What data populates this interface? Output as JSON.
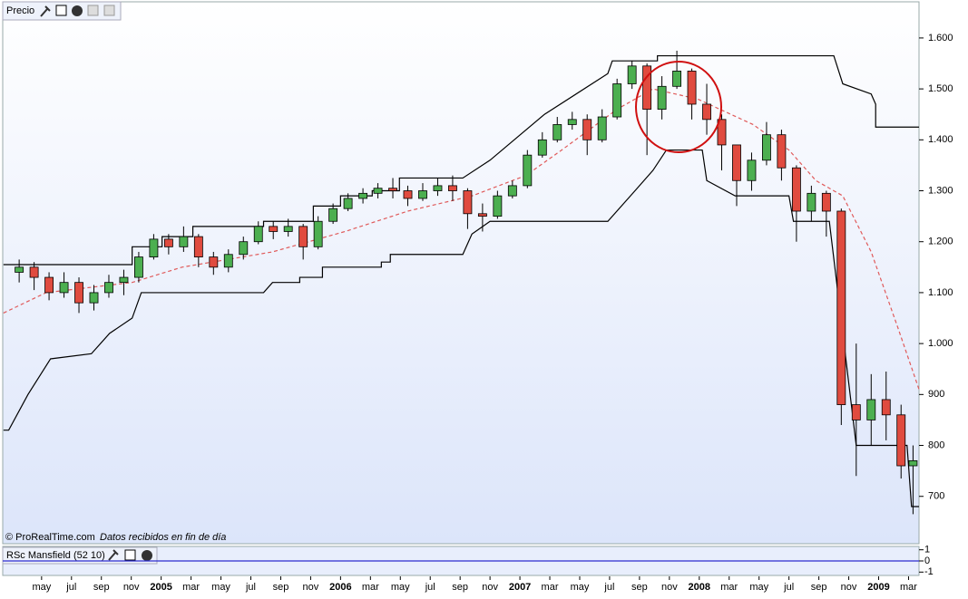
{
  "chart_data": [
    {
      "type": "candlestick",
      "title": "Precio",
      "source": "© ProRealTime.com",
      "note": "Datos recibidos en fin de día",
      "up_color": "#4caf50",
      "down_color": "#e04b3f",
      "x": [
        -0.5,
        0.5,
        1.5,
        2.5,
        3.5,
        4.5,
        5.5,
        6.5,
        7.5,
        8.5,
        9.5,
        10.5,
        11.5,
        12.5,
        13.5,
        14.5,
        15.5,
        16.5,
        17.5,
        18.5,
        19.5,
        20.5,
        21.5,
        22.5,
        23.5,
        24.5,
        25.5,
        26.5,
        27.5,
        28.5,
        29.5,
        30.5,
        31.5,
        32.5,
        33.5,
        34.5,
        35.5,
        36.5,
        37.5,
        38.5,
        39.5,
        40.5,
        41.5,
        42.5,
        43.5,
        44.5,
        45.5,
        46.5,
        47.5,
        48.5,
        49.5,
        50.5,
        51.5,
        52.5,
        53.5,
        54.5,
        55.5,
        56.5,
        57.5,
        58.5,
        59.3
      ],
      "open": [
        1140,
        1150,
        1130,
        1100,
        1120,
        1080,
        1100,
        1120,
        1130,
        1170,
        1205,
        1190,
        1210,
        1170,
        1150,
        1175,
        1200,
        1230,
        1220,
        1230,
        1190,
        1240,
        1265,
        1285,
        1295,
        1305,
        1300,
        1285,
        1300,
        1310,
        1300,
        1255,
        1250,
        1290,
        1310,
        1370,
        1400,
        1430,
        1440,
        1400,
        1445,
        1510,
        1545,
        1460,
        1505,
        1535,
        1470,
        1440,
        1390,
        1320,
        1360,
        1410,
        1345,
        1260,
        1295,
        1260,
        880,
        850,
        890,
        860,
        760
      ],
      "high": [
        1165,
        1160,
        1140,
        1140,
        1130,
        1115,
        1135,
        1145,
        1180,
        1215,
        1215,
        1230,
        1215,
        1180,
        1185,
        1210,
        1240,
        1240,
        1245,
        1235,
        1250,
        1275,
        1295,
        1305,
        1315,
        1325,
        1310,
        1315,
        1325,
        1330,
        1305,
        1275,
        1300,
        1320,
        1380,
        1415,
        1445,
        1455,
        1450,
        1460,
        1520,
        1555,
        1550,
        1525,
        1575,
        1540,
        1510,
        1450,
        1390,
        1375,
        1435,
        1420,
        1350,
        1310,
        1300,
        1265,
        1000,
        940,
        945,
        880,
        800
      ],
      "low": [
        1120,
        1105,
        1085,
        1090,
        1060,
        1065,
        1090,
        1095,
        1120,
        1165,
        1175,
        1180,
        1150,
        1135,
        1140,
        1165,
        1195,
        1205,
        1210,
        1165,
        1185,
        1235,
        1260,
        1275,
        1285,
        1285,
        1270,
        1280,
        1290,
        1280,
        1225,
        1220,
        1245,
        1285,
        1305,
        1365,
        1395,
        1420,
        1370,
        1395,
        1440,
        1500,
        1370,
        1440,
        1500,
        1440,
        1410,
        1340,
        1270,
        1300,
        1350,
        1320,
        1200,
        1240,
        1210,
        840,
        740,
        800,
        810,
        735,
        665
      ],
      "close": [
        1150,
        1130,
        1100,
        1120,
        1080,
        1100,
        1120,
        1130,
        1170,
        1205,
        1190,
        1210,
        1170,
        1150,
        1175,
        1200,
        1230,
        1220,
        1230,
        1190,
        1240,
        1265,
        1285,
        1295,
        1305,
        1300,
        1285,
        1300,
        1310,
        1300,
        1255,
        1250,
        1290,
        1310,
        1370,
        1400,
        1430,
        1440,
        1400,
        1445,
        1510,
        1545,
        1460,
        1505,
        1535,
        1470,
        1440,
        1390,
        1320,
        1360,
        1410,
        1345,
        1260,
        1295,
        1260,
        880,
        850,
        890,
        860,
        760,
        770
      ],
      "series": [
        {
          "color": "#000000",
          "dash": false,
          "x": [
            -1.55,
            7.06,
            7.06,
            9.06,
            9.06,
            11.12,
            11.12,
            15.85,
            15.85,
            19.18,
            19.18,
            21.0,
            21.0,
            23.12,
            23.12,
            24.94,
            24.94,
            29.18,
            31.0,
            34.64,
            38.88,
            39.18,
            42.2,
            42.2,
            54.0,
            54.6,
            56.5,
            56.8,
            56.8,
            59.7
          ],
          "values": [
            1155,
            1155,
            1190,
            1190,
            1210,
            1210,
            1230,
            1230,
            1240,
            1240,
            1270,
            1270,
            1290,
            1290,
            1300,
            1300,
            1325,
            1325,
            1360,
            1450,
            1530,
            1555,
            1555,
            1565,
            1565,
            1510,
            1490,
            1470,
            1425,
            1425
          ]
        },
        {
          "color": "#000000",
          "dash": false,
          "x": [
            -1.55,
            -1.2,
            0.09,
            0.09,
            1.6,
            1.6,
            4.33,
            4.33,
            5.55,
            5.55,
            7.06,
            7.67,
            15.85,
            16.45,
            18.27,
            18.27,
            19.79,
            19.79,
            23.73,
            23.73,
            24.33,
            24.33,
            29.18,
            29.79,
            31.0,
            38.88,
            40.7,
            41.9,
            42.8,
            45.2,
            45.5,
            47.4,
            51.0,
            51.3,
            53.7,
            55.5,
            58.9,
            59.2,
            59.7
          ],
          "values": [
            830,
            830,
            900,
            900,
            970,
            970,
            980,
            980,
            1020,
            1020,
            1050,
            1100,
            1100,
            1120,
            1120,
            1130,
            1130,
            1150,
            1150,
            1160,
            1160,
            1175,
            1175,
            1215,
            1240,
            1240,
            1300,
            1340,
            1380,
            1380,
            1320,
            1290,
            1290,
            1240,
            1240,
            800,
            800,
            680,
            680
          ]
        },
        {
          "color": "#e05a5a",
          "dash": true,
          "x": [
            -1.55,
            1.3,
            7.06,
            10.4,
            16.45,
            21.3,
            25.5,
            29.8,
            33.4,
            35.8,
            39.5,
            41.9,
            44.9,
            48.6,
            51.0,
            52.8,
            54.6,
            56.5,
            58.3,
            59.7
          ],
          "values": [
            1060,
            1100,
            1120,
            1150,
            1180,
            1220,
            1260,
            1290,
            1330,
            1380,
            1460,
            1500,
            1480,
            1430,
            1380,
            1320,
            1290,
            1180,
            1030,
            910
          ]
        }
      ],
      "xlim": [
        -1.6,
        59.7
      ],
      "ylim": [
        607,
        1671
      ],
      "yticks": [
        {
          "value": 1600,
          "label": "1.600"
        },
        {
          "value": 1500,
          "label": "1.500"
        },
        {
          "value": 1400,
          "label": "1.400"
        },
        {
          "value": 1300,
          "label": "1.300"
        },
        {
          "value": 1200,
          "label": "1.200"
        },
        {
          "value": 1100,
          "label": "1.100"
        },
        {
          "value": 1000,
          "label": "1.000"
        },
        900,
        800,
        700
      ],
      "xticks": [
        {
          "value": 1,
          "label": "may"
        },
        {
          "value": 3,
          "label": "jul"
        },
        {
          "value": 5,
          "label": "sep"
        },
        {
          "value": 7,
          "label": "nov"
        },
        {
          "value": 9,
          "label": "2005"
        },
        {
          "value": 11,
          "label": "mar"
        },
        {
          "value": 13,
          "label": "may"
        },
        {
          "value": 15,
          "label": "jul"
        },
        {
          "value": 17,
          "label": "sep"
        },
        {
          "value": 19,
          "label": "nov"
        },
        {
          "value": 21,
          "label": "2006"
        },
        {
          "value": 23,
          "label": "mar"
        },
        {
          "value": 25,
          "label": "may"
        },
        {
          "value": 27,
          "label": "jul"
        },
        {
          "value": 29,
          "label": "sep"
        },
        {
          "value": 31,
          "label": "nov"
        },
        {
          "value": 33,
          "label": "2007"
        },
        {
          "value": 35,
          "label": "mar"
        },
        {
          "value": 37,
          "label": "may"
        },
        {
          "value": 39,
          "label": "jul"
        },
        {
          "value": 41,
          "label": "sep"
        },
        {
          "value": 43,
          "label": "nov"
        },
        {
          "value": 45,
          "label": "2008"
        },
        {
          "value": 47,
          "label": "mar"
        },
        {
          "value": 49,
          "label": "may"
        },
        {
          "value": 51,
          "label": "jul"
        },
        {
          "value": 53,
          "label": "sep"
        },
        {
          "value": 55,
          "label": "nov"
        },
        {
          "value": 57,
          "label": "2009"
        },
        {
          "value": 59,
          "label": "mar"
        }
      ]
    },
    {
      "type": "line",
      "title": "RSc Mansfield (52 10)",
      "color": "#2b2bd0",
      "x": [
        -1.6,
        59.7
      ],
      "values": [
        0,
        0
      ],
      "xlim": [
        -1.6,
        59.7
      ],
      "ylim": [
        -1.3,
        1.3
      ],
      "yticks": [
        1,
        0,
        -1
      ]
    }
  ]
}
